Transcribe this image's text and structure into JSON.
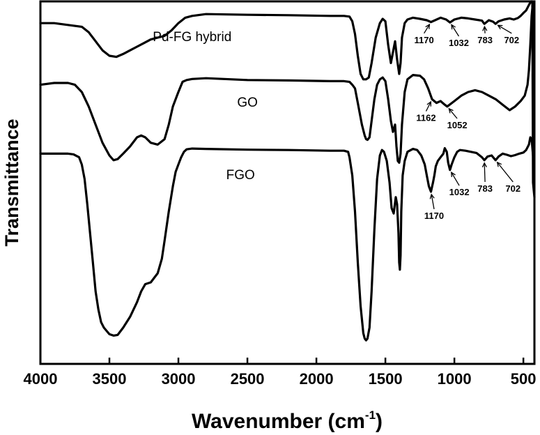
{
  "chart_data": {
    "type": "line",
    "title": "",
    "xlabel_main": "Wavenumber (cm",
    "xlabel_sup": "-1",
    "xlabel_close": ")",
    "ylabel": "Transmittance",
    "xlim": [
      4000,
      420
    ],
    "x_reversed": true,
    "x_ticks": [
      4000,
      3500,
      3000,
      2500,
      2000,
      1500,
      1000,
      500
    ],
    "x_tick_labels": [
      "4000",
      "3500",
      "3000",
      "2500",
      "2000",
      "1500",
      "1000",
      "500"
    ],
    "y_ticks_shown": false,
    "ylim": [
      0,
      100
    ],
    "grid": false,
    "legend": "none",
    "series": [
      {
        "name": "Pd-FG hybrid",
        "color": "#000000",
        "points": [
          [
            4000,
            94
          ],
          [
            3900,
            94
          ],
          [
            3800,
            93.5
          ],
          [
            3700,
            93
          ],
          [
            3650,
            91.5
          ],
          [
            3600,
            89
          ],
          [
            3550,
            86.5
          ],
          [
            3500,
            85
          ],
          [
            3450,
            84.7
          ],
          [
            3400,
            85.5
          ],
          [
            3350,
            86.5
          ],
          [
            3300,
            87.5
          ],
          [
            3250,
            88.5
          ],
          [
            3200,
            89.5
          ],
          [
            3150,
            90
          ],
          [
            3100,
            90.5
          ],
          [
            3050,
            92
          ],
          [
            3000,
            94
          ],
          [
            2950,
            95.5
          ],
          [
            2900,
            96
          ],
          [
            2800,
            96.5
          ],
          [
            2500,
            96.3
          ],
          [
            2200,
            96.2
          ],
          [
            1900,
            96
          ],
          [
            1800,
            96
          ],
          [
            1760,
            95.8
          ],
          [
            1740,
            94.5
          ],
          [
            1720,
            91
          ],
          [
            1700,
            85
          ],
          [
            1680,
            80
          ],
          [
            1660,
            78.5
          ],
          [
            1640,
            78.5
          ],
          [
            1620,
            79
          ],
          [
            1600,
            83
          ],
          [
            1570,
            90
          ],
          [
            1540,
            94
          ],
          [
            1520,
            95.2
          ],
          [
            1500,
            94.5
          ],
          [
            1480,
            88
          ],
          [
            1460,
            83
          ],
          [
            1445,
            86
          ],
          [
            1430,
            89
          ],
          [
            1415,
            84
          ],
          [
            1400,
            80
          ],
          [
            1390,
            83
          ],
          [
            1380,
            90
          ],
          [
            1360,
            94
          ],
          [
            1340,
            95
          ],
          [
            1300,
            95.5
          ],
          [
            1250,
            95.2
          ],
          [
            1200,
            94.8
          ],
          [
            1170,
            94.3
          ],
          [
            1140,
            94.8
          ],
          [
            1100,
            95.5
          ],
          [
            1060,
            95
          ],
          [
            1032,
            94.2
          ],
          [
            1000,
            95
          ],
          [
            950,
            95.5
          ],
          [
            900,
            95.3
          ],
          [
            850,
            95
          ],
          [
            800,
            94.7
          ],
          [
            783,
            93.8
          ],
          [
            750,
            94.8
          ],
          [
            720,
            94.4
          ],
          [
            702,
            93.8
          ],
          [
            680,
            94.5
          ],
          [
            640,
            95
          ],
          [
            600,
            95.3
          ],
          [
            570,
            95
          ],
          [
            540,
            95.4
          ],
          [
            520,
            96
          ],
          [
            500,
            96.8
          ],
          [
            480,
            97.5
          ],
          [
            460,
            99
          ],
          [
            445,
            100
          ],
          [
            435,
            100
          ],
          [
            430,
            50
          ],
          [
            420,
            46
          ]
        ]
      },
      {
        "name": "GO",
        "color": "#000000",
        "points": [
          [
            4000,
            77
          ],
          [
            3900,
            77.5
          ],
          [
            3800,
            77.5
          ],
          [
            3750,
            77
          ],
          [
            3700,
            75
          ],
          [
            3650,
            71
          ],
          [
            3600,
            66
          ],
          [
            3550,
            61
          ],
          [
            3500,
            57.5
          ],
          [
            3470,
            56.2
          ],
          [
            3440,
            56.5
          ],
          [
            3400,
            58
          ],
          [
            3350,
            60
          ],
          [
            3300,
            62.5
          ],
          [
            3270,
            63
          ],
          [
            3240,
            62.5
          ],
          [
            3200,
            61
          ],
          [
            3150,
            60.5
          ],
          [
            3100,
            62
          ],
          [
            3070,
            66
          ],
          [
            3040,
            71
          ],
          [
            3000,
            75
          ],
          [
            2970,
            77.8
          ],
          [
            2940,
            78.3
          ],
          [
            2900,
            78.6
          ],
          [
            2800,
            78.8
          ],
          [
            2500,
            78.3
          ],
          [
            2200,
            78.2
          ],
          [
            1900,
            78
          ],
          [
            1800,
            78
          ],
          [
            1760,
            77.8
          ],
          [
            1740,
            77
          ],
          [
            1720,
            76
          ],
          [
            1700,
            72
          ],
          [
            1670,
            66
          ],
          [
            1650,
            63
          ],
          [
            1640,
            62
          ],
          [
            1630,
            61.8
          ],
          [
            1615,
            62.5
          ],
          [
            1600,
            67
          ],
          [
            1580,
            73
          ],
          [
            1560,
            77
          ],
          [
            1540,
            78.5
          ],
          [
            1520,
            79
          ],
          [
            1500,
            78
          ],
          [
            1480,
            73
          ],
          [
            1460,
            67
          ],
          [
            1445,
            64
          ],
          [
            1430,
            66
          ],
          [
            1420,
            60
          ],
          [
            1410,
            56
          ],
          [
            1400,
            55.5
          ],
          [
            1390,
            58
          ],
          [
            1380,
            66
          ],
          [
            1360,
            75
          ],
          [
            1340,
            78.5
          ],
          [
            1300,
            79.7
          ],
          [
            1250,
            79.5
          ],
          [
            1220,
            78.5
          ],
          [
            1190,
            76
          ],
          [
            1162,
            73
          ],
          [
            1130,
            72
          ],
          [
            1100,
            72.5
          ],
          [
            1070,
            71.5
          ],
          [
            1052,
            71
          ],
          [
            1000,
            72.5
          ],
          [
            950,
            74
          ],
          [
            900,
            75
          ],
          [
            850,
            75.5
          ],
          [
            800,
            75
          ],
          [
            750,
            74
          ],
          [
            700,
            73
          ],
          [
            650,
            71.5
          ],
          [
            600,
            70
          ],
          [
            560,
            71
          ],
          [
            520,
            72.5
          ],
          [
            490,
            74
          ],
          [
            470,
            77
          ],
          [
            460,
            81
          ],
          [
            450,
            88
          ],
          [
            440,
            96
          ],
          [
            435,
            98
          ],
          [
            430,
            96
          ],
          [
            425,
            79
          ]
        ]
      },
      {
        "name": "FGO",
        "color": "#000000",
        "points": [
          [
            4000,
            58
          ],
          [
            3800,
            58
          ],
          [
            3760,
            57.8
          ],
          [
            3720,
            57
          ],
          [
            3700,
            55
          ],
          [
            3680,
            51
          ],
          [
            3660,
            44
          ],
          [
            3640,
            36
          ],
          [
            3620,
            28
          ],
          [
            3600,
            20
          ],
          [
            3580,
            15
          ],
          [
            3560,
            11.5
          ],
          [
            3540,
            10
          ],
          [
            3500,
            8.2
          ],
          [
            3470,
            7.8
          ],
          [
            3440,
            8
          ],
          [
            3400,
            10
          ],
          [
            3350,
            13
          ],
          [
            3300,
            17
          ],
          [
            3270,
            20
          ],
          [
            3240,
            22
          ],
          [
            3200,
            22.5
          ],
          [
            3150,
            25
          ],
          [
            3120,
            29
          ],
          [
            3100,
            34
          ],
          [
            3070,
            42
          ],
          [
            3040,
            49
          ],
          [
            3020,
            53
          ],
          [
            3000,
            55
          ],
          [
            2980,
            57
          ],
          [
            2960,
            58.5
          ],
          [
            2940,
            59.2
          ],
          [
            2900,
            59.4
          ],
          [
            2800,
            59.3
          ],
          [
            2500,
            59.1
          ],
          [
            2200,
            59
          ],
          [
            1900,
            58.8
          ],
          [
            1800,
            58.8
          ],
          [
            1770,
            58.5
          ],
          [
            1760,
            57
          ],
          [
            1740,
            52
          ],
          [
            1720,
            42
          ],
          [
            1700,
            28
          ],
          [
            1680,
            16
          ],
          [
            1660,
            8.5
          ],
          [
            1650,
            7
          ],
          [
            1640,
            6.5
          ],
          [
            1630,
            7
          ],
          [
            1615,
            10
          ],
          [
            1600,
            20
          ],
          [
            1580,
            37
          ],
          [
            1560,
            51
          ],
          [
            1540,
            57.5
          ],
          [
            1525,
            59
          ],
          [
            1510,
            58.5
          ],
          [
            1490,
            56
          ],
          [
            1470,
            50
          ],
          [
            1455,
            43
          ],
          [
            1440,
            41.5
          ],
          [
            1425,
            46
          ],
          [
            1415,
            44
          ],
          [
            1405,
            36
          ],
          [
            1400,
            28
          ],
          [
            1395,
            26
          ],
          [
            1390,
            30
          ],
          [
            1385,
            42
          ],
          [
            1375,
            52
          ],
          [
            1360,
            56
          ],
          [
            1340,
            58.5
          ],
          [
            1300,
            59.3
          ],
          [
            1270,
            59
          ],
          [
            1240,
            57.5
          ],
          [
            1215,
            55
          ],
          [
            1200,
            52
          ],
          [
            1185,
            49
          ],
          [
            1170,
            47.5
          ],
          [
            1155,
            50
          ],
          [
            1145,
            52
          ],
          [
            1135,
            54.5
          ],
          [
            1120,
            56
          ],
          [
            1100,
            57
          ],
          [
            1080,
            58
          ],
          [
            1070,
            59.5
          ],
          [
            1055,
            58.5
          ],
          [
            1045,
            55.5
          ],
          [
            1032,
            53.5
          ],
          [
            1020,
            55
          ],
          [
            1000,
            57
          ],
          [
            980,
            58.5
          ],
          [
            960,
            59
          ],
          [
            920,
            58.8
          ],
          [
            880,
            58.5
          ],
          [
            840,
            58.2
          ],
          [
            800,
            57
          ],
          [
            783,
            56.2
          ],
          [
            760,
            57.2
          ],
          [
            730,
            57.5
          ],
          [
            702,
            56.2
          ],
          [
            680,
            57.2
          ],
          [
            650,
            58
          ],
          [
            620,
            57.7
          ],
          [
            590,
            57.3
          ],
          [
            560,
            57.6
          ],
          [
            530,
            58
          ],
          [
            500,
            58.3
          ],
          [
            480,
            59
          ],
          [
            460,
            60.5
          ],
          [
            450,
            62.5
          ],
          [
            440,
            62
          ],
          [
            430,
            57.5
          ],
          [
            425,
            57
          ]
        ]
      }
    ],
    "series_labels": [
      {
        "series": "Pd-FG hybrid",
        "text": "Pd-FG hybrid",
        "x": 2900,
        "y": 89
      },
      {
        "series": "GO",
        "text": "GO",
        "x": 2500,
        "y": 71
      },
      {
        "series": "FGO",
        "text": "FGO",
        "x": 2550,
        "y": 51
      }
    ],
    "annotations": [
      {
        "text": "1170",
        "x": 1170,
        "y": 94.3,
        "label_x": 1220,
        "label_y": 88.5
      },
      {
        "text": "1032",
        "x": 1032,
        "y": 94.2,
        "label_x": 968,
        "label_y": 87.7
      },
      {
        "text": "783",
        "x": 783,
        "y": 93.8,
        "label_x": 778,
        "label_y": 88.5
      },
      {
        "text": "702",
        "x": 702,
        "y": 93.8,
        "label_x": 585,
        "label_y": 88.5
      },
      {
        "text": "1162",
        "x": 1162,
        "y": 73,
        "label_x": 1205,
        "label_y": 67
      },
      {
        "text": "1052",
        "x": 1052,
        "y": 71,
        "label_x": 980,
        "label_y": 65
      },
      {
        "text": "1170",
        "x": 1170,
        "y": 47.5,
        "label_x": 1147,
        "label_y": 40
      },
      {
        "text": "1032",
        "x": 1032,
        "y": 53.5,
        "label_x": 965,
        "label_y": 46.5
      },
      {
        "text": "783",
        "x": 783,
        "y": 56.2,
        "label_x": 778,
        "label_y": 47.5
      },
      {
        "text": "702",
        "x": 702,
        "y": 56.2,
        "label_x": 575,
        "label_y": 47.5
      }
    ]
  }
}
